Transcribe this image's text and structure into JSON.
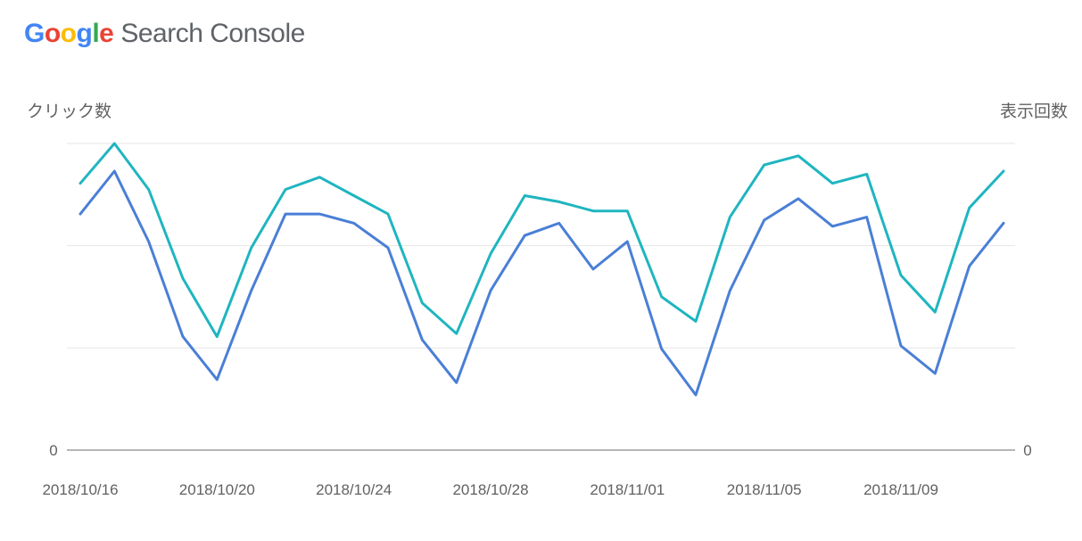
{
  "brand": {
    "google_letters": [
      {
        "char": "G",
        "color": "#4285F4"
      },
      {
        "char": "o",
        "color": "#EA4335"
      },
      {
        "char": "o",
        "color": "#FBBC05"
      },
      {
        "char": "g",
        "color": "#4285F4"
      },
      {
        "char": "l",
        "color": "#34A853"
      },
      {
        "char": "e",
        "color": "#EA4335"
      }
    ],
    "product": "Search Console"
  },
  "chart_data": {
    "type": "line",
    "x": [
      "2018/10/16",
      "2018/10/17",
      "2018/10/18",
      "2018/10/19",
      "2018/10/20",
      "2018/10/21",
      "2018/10/22",
      "2018/10/23",
      "2018/10/24",
      "2018/10/25",
      "2018/10/26",
      "2018/10/27",
      "2018/10/28",
      "2018/10/29",
      "2018/10/30",
      "2018/10/31",
      "2018/11/01",
      "2018/11/02",
      "2018/11/03",
      "2018/11/04",
      "2018/11/05",
      "2018/11/06",
      "2018/11/07",
      "2018/11/08",
      "2018/11/09",
      "2018/11/10",
      "2018/11/11",
      "2018/11/12"
    ],
    "xticks": [
      "2018/10/16",
      "2018/10/20",
      "2018/10/24",
      "2018/10/28",
      "2018/11/01",
      "2018/11/05",
      "2018/11/09"
    ],
    "ylabel_left": "クリック数",
    "ylabel_right": "表示回数",
    "left_ytick": "0",
    "right_ytick": "0",
    "ylim": [
      0,
      100
    ],
    "grid": true,
    "series": [
      {
        "name": "クリック数",
        "axis": "left",
        "color": "#4a7fd6",
        "values": [
          77,
          91,
          68,
          37,
          23,
          52,
          77,
          77,
          74,
          66,
          36,
          22,
          52,
          70,
          74,
          59,
          68,
          33,
          18,
          52,
          75,
          82,
          73,
          76,
          34,
          25,
          60,
          74
        ]
      },
      {
        "name": "表示回数",
        "axis": "right",
        "color": "#1fb5c0",
        "values": [
          87,
          100,
          85,
          56,
          37,
          66,
          85,
          89,
          83,
          77,
          48,
          38,
          64,
          83,
          81,
          78,
          78,
          50,
          42,
          76,
          93,
          96,
          87,
          90,
          57,
          45,
          79,
          91
        ]
      }
    ]
  }
}
